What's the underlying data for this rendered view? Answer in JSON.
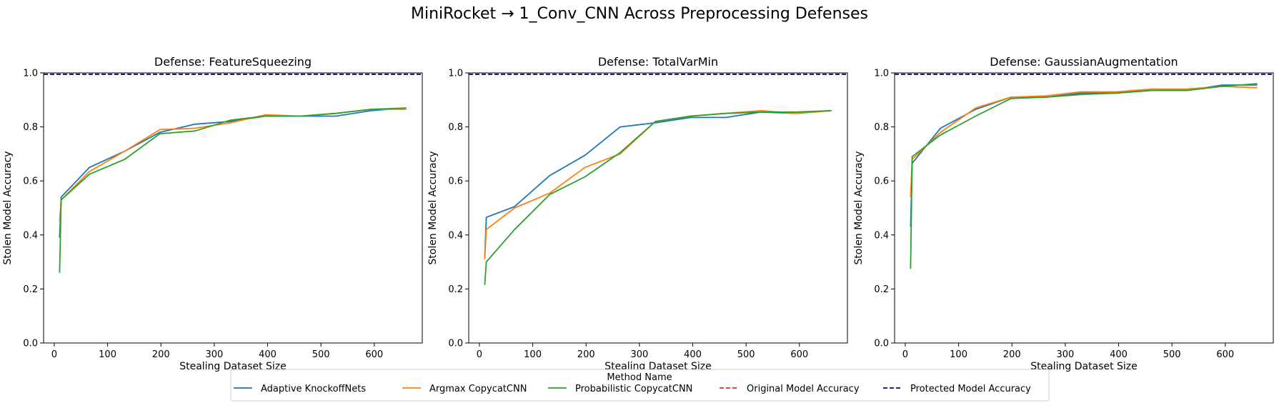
{
  "figure": {
    "title": "MiniRocket → 1_Conv_CNN Across Preprocessing Defenses"
  },
  "legend": {
    "title": "Method Name",
    "placement": "bottom-center",
    "entries": [
      {
        "label": "Adaptive KnockoffNets",
        "color": "#1f77b4",
        "style": "solid"
      },
      {
        "label": "Argmax CopycatCNN",
        "color": "#ff7f0e",
        "style": "solid"
      },
      {
        "label": "Probabilistic CopycatCNN",
        "color": "#2ca02c",
        "style": "solid"
      },
      {
        "label": "Original Model Accuracy",
        "color": "#d62728",
        "style": "dashed"
      },
      {
        "label": "Protected Model Accuracy",
        "color": "#00008b",
        "style": "dashed"
      }
    ]
  },
  "chart_data": [
    {
      "type": "line",
      "title": "Defense: FeatureSqueezing",
      "xlabel": "Stealing Dataset Size",
      "ylabel": "Stolen Model Accuracy",
      "xlim": [
        -20,
        690
      ],
      "ylim": [
        0,
        1
      ],
      "xticks": [
        0,
        100,
        200,
        300,
        400,
        500,
        600
      ],
      "yticks": [
        0.0,
        0.2,
        0.4,
        0.6,
        0.8,
        1.0
      ],
      "reference_lines": {
        "original": 0.995,
        "protected": 0.995
      },
      "series": [
        {
          "name": "Adaptive KnockoffNets",
          "x": [
            10,
            13,
            66,
            132,
            198,
            264,
            330,
            396,
            462,
            528,
            594,
            660
          ],
          "y": [
            0.39,
            0.54,
            0.65,
            0.71,
            0.78,
            0.81,
            0.82,
            0.84,
            0.84,
            0.84,
            0.86,
            0.87
          ]
        },
        {
          "name": "Argmax CopycatCNN",
          "x": [
            10,
            13,
            66,
            132,
            198,
            264,
            330,
            396,
            462,
            528,
            594,
            660
          ],
          "y": [
            0.45,
            0.53,
            0.635,
            0.71,
            0.79,
            0.795,
            0.815,
            0.845,
            0.84,
            0.85,
            0.865,
            0.865
          ]
        },
        {
          "name": "Probabilistic CopycatCNN",
          "x": [
            10,
            13,
            66,
            132,
            198,
            264,
            330,
            396,
            462,
            528,
            594,
            660
          ],
          "y": [
            0.26,
            0.53,
            0.625,
            0.68,
            0.775,
            0.785,
            0.825,
            0.84,
            0.84,
            0.85,
            0.865,
            0.87
          ]
        }
      ]
    },
    {
      "type": "line",
      "title": "Defense: TotalVarMin",
      "xlabel": "Stealing Dataset Size",
      "ylabel": "Stolen Model Accuracy",
      "xlim": [
        -20,
        690
      ],
      "ylim": [
        0,
        1
      ],
      "xticks": [
        0,
        100,
        200,
        300,
        400,
        500,
        600
      ],
      "yticks": [
        0.0,
        0.2,
        0.4,
        0.6,
        0.8,
        1.0
      ],
      "reference_lines": {
        "original": 0.995,
        "protected": 0.995
      },
      "series": [
        {
          "name": "Adaptive KnockoffNets",
          "x": [
            10,
            13,
            66,
            132,
            198,
            264,
            330,
            396,
            462,
            528,
            594,
            660
          ],
          "y": [
            0.32,
            0.465,
            0.505,
            0.62,
            0.695,
            0.8,
            0.815,
            0.835,
            0.835,
            0.855,
            0.85,
            0.86
          ]
        },
        {
          "name": "Argmax CopycatCNN",
          "x": [
            10,
            13,
            66,
            132,
            198,
            264,
            330,
            396,
            462,
            528,
            594,
            660
          ],
          "y": [
            0.31,
            0.42,
            0.5,
            0.555,
            0.65,
            0.7,
            0.82,
            0.84,
            0.85,
            0.86,
            0.85,
            0.86
          ]
        },
        {
          "name": "Probabilistic CopycatCNN",
          "x": [
            10,
            13,
            66,
            132,
            198,
            264,
            330,
            396,
            462,
            528,
            594,
            660
          ],
          "y": [
            0.215,
            0.3,
            0.42,
            0.55,
            0.615,
            0.705,
            0.82,
            0.84,
            0.85,
            0.855,
            0.855,
            0.86
          ]
        }
      ]
    },
    {
      "type": "line",
      "title": "Defense: GaussianAugmentation",
      "xlabel": "Stealing Dataset Size",
      "ylabel": "Stolen Model Accuracy",
      "xlim": [
        -20,
        690
      ],
      "ylim": [
        0,
        1
      ],
      "xticks": [
        0,
        100,
        200,
        300,
        400,
        500,
        600
      ],
      "yticks": [
        0.0,
        0.2,
        0.4,
        0.6,
        0.8,
        1.0
      ],
      "reference_lines": {
        "original": 0.995,
        "protected": 0.995
      },
      "series": [
        {
          "name": "Adaptive KnockoffNets",
          "x": [
            10,
            13,
            66,
            132,
            198,
            264,
            330,
            396,
            462,
            528,
            594,
            660
          ],
          "y": [
            0.43,
            0.665,
            0.795,
            0.865,
            0.91,
            0.91,
            0.925,
            0.925,
            0.94,
            0.935,
            0.955,
            0.955
          ]
        },
        {
          "name": "Argmax CopycatCNN",
          "x": [
            10,
            13,
            66,
            132,
            198,
            264,
            330,
            396,
            462,
            528,
            594,
            660
          ],
          "y": [
            0.54,
            0.68,
            0.78,
            0.87,
            0.91,
            0.915,
            0.93,
            0.93,
            0.94,
            0.94,
            0.95,
            0.945
          ]
        },
        {
          "name": "Probabilistic CopycatCNN",
          "x": [
            10,
            13,
            66,
            132,
            198,
            264,
            330,
            396,
            462,
            528,
            594,
            660
          ],
          "y": [
            0.275,
            0.69,
            0.77,
            0.84,
            0.905,
            0.91,
            0.92,
            0.925,
            0.935,
            0.935,
            0.95,
            0.96
          ]
        }
      ]
    }
  ]
}
